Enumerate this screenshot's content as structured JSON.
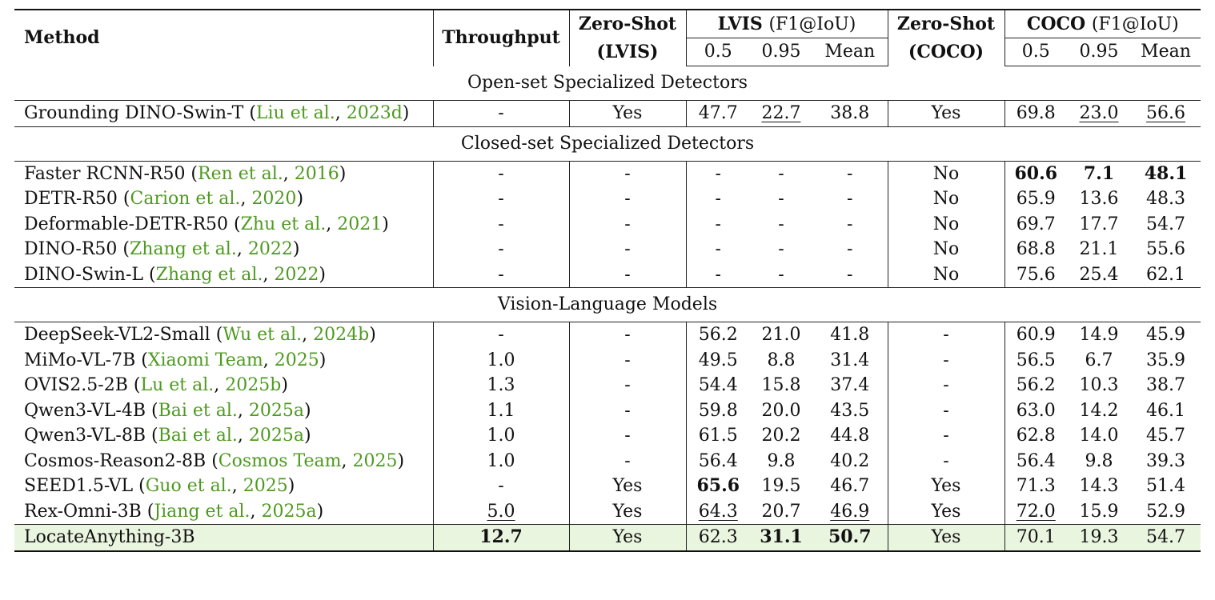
{
  "headers": {
    "method": "Method",
    "throughput": "Throughput",
    "zero_shot": "Zero-Shot",
    "lvis_paren": "(LVIS)",
    "coco_paren": "(COCO)",
    "lvis_group": "LVIS",
    "coco_group": "COCO",
    "metric": "(F1@IoU)",
    "col_05": "0.5",
    "col_095": "0.95",
    "col_mean": "Mean"
  },
  "sections": [
    {
      "title": "Open-set Specialized Detectors",
      "rows": [
        {
          "name": "Grounding DINO-Swin-T",
          "cite_author": "Liu et al.",
          "cite_year": "2023d",
          "throughput": "-",
          "zs_lvis": "Yes",
          "lvis_05": "47.7",
          "lvis_095": "22.7",
          "lvis_mean": "38.8",
          "zs_coco": "Yes",
          "coco_05": "69.8",
          "coco_095": "23.0",
          "coco_mean": "56.6"
        }
      ]
    },
    {
      "title": "Closed-set Specialized Detectors",
      "rows": [
        {
          "name": "Faster RCNN-R50",
          "cite_author": "Ren et al.",
          "cite_year": "2016",
          "throughput": "-",
          "zs_lvis": "-",
          "lvis_05": "-",
          "lvis_095": "-",
          "lvis_mean": "-",
          "zs_coco": "No",
          "coco_05": "60.6",
          "coco_095": "7.1",
          "coco_mean": "48.1"
        },
        {
          "name": "DETR-R50",
          "cite_author": "Carion et al.",
          "cite_year": "2020",
          "throughput": "-",
          "zs_lvis": "-",
          "lvis_05": "-",
          "lvis_095": "-",
          "lvis_mean": "-",
          "zs_coco": "No",
          "coco_05": "65.9",
          "coco_095": "13.6",
          "coco_mean": "48.3"
        },
        {
          "name": "Deformable-DETR-R50",
          "cite_author": "Zhu et al.",
          "cite_year": "2021",
          "throughput": "-",
          "zs_lvis": "-",
          "lvis_05": "-",
          "lvis_095": "-",
          "lvis_mean": "-",
          "zs_coco": "No",
          "coco_05": "69.7",
          "coco_095": "17.7",
          "coco_mean": "54.7"
        },
        {
          "name": "DINO-R50",
          "cite_author": "Zhang et al.",
          "cite_year": "2022",
          "throughput": "-",
          "zs_lvis": "-",
          "lvis_05": "-",
          "lvis_095": "-",
          "lvis_mean": "-",
          "zs_coco": "No",
          "coco_05": "68.8",
          "coco_095": "21.1",
          "coco_mean": "55.6"
        },
        {
          "name": "DINO-Swin-L",
          "cite_author": "Zhang et al.",
          "cite_year": "2022",
          "throughput": "-",
          "zs_lvis": "-",
          "lvis_05": "-",
          "lvis_095": "-",
          "lvis_mean": "-",
          "zs_coco": "No",
          "coco_05": "75.6",
          "coco_095": "25.4",
          "coco_mean": "62.1"
        }
      ]
    },
    {
      "title": "Vision-Language Models",
      "rows": [
        {
          "name": "DeepSeek-VL2-Small",
          "cite_author": "Wu et al.",
          "cite_year": "2024b",
          "throughput": "-",
          "zs_lvis": "-",
          "lvis_05": "56.2",
          "lvis_095": "21.0",
          "lvis_mean": "41.8",
          "zs_coco": "-",
          "coco_05": "60.9",
          "coco_095": "14.9",
          "coco_mean": "45.9"
        },
        {
          "name": "MiMo-VL-7B",
          "cite_author": "Xiaomi Team",
          "cite_year": "2025",
          "throughput": "1.0",
          "zs_lvis": "-",
          "lvis_05": "49.5",
          "lvis_095": "8.8",
          "lvis_mean": "31.4",
          "zs_coco": "-",
          "coco_05": "56.5",
          "coco_095": "6.7",
          "coco_mean": "35.9"
        },
        {
          "name": "OVIS2.5-2B",
          "cite_author": "Lu et al.",
          "cite_year": "2025b",
          "throughput": "1.3",
          "zs_lvis": "-",
          "lvis_05": "54.4",
          "lvis_095": "15.8",
          "lvis_mean": "37.4",
          "zs_coco": "-",
          "coco_05": "56.2",
          "coco_095": "10.3",
          "coco_mean": "38.7"
        },
        {
          "name": "Qwen3-VL-4B",
          "cite_author": "Bai et al.",
          "cite_year": "2025a",
          "throughput": "1.1",
          "zs_lvis": "-",
          "lvis_05": "59.8",
          "lvis_095": "20.0",
          "lvis_mean": "43.5",
          "zs_coco": "-",
          "coco_05": "63.0",
          "coco_095": "14.2",
          "coco_mean": "46.1"
        },
        {
          "name": "Qwen3-VL-8B",
          "cite_author": "Bai et al.",
          "cite_year": "2025a",
          "throughput": "1.0",
          "zs_lvis": "-",
          "lvis_05": "61.5",
          "lvis_095": "20.2",
          "lvis_mean": "44.8",
          "zs_coco": "-",
          "coco_05": "62.8",
          "coco_095": "14.0",
          "coco_mean": "45.7"
        },
        {
          "name": "Cosmos-Reason2-8B",
          "cite_author": "Cosmos Team",
          "cite_year": "2025",
          "throughput": "1.0",
          "zs_lvis": "-",
          "lvis_05": "56.4",
          "lvis_095": "9.8",
          "lvis_mean": "40.2",
          "zs_coco": "-",
          "coco_05": "56.4",
          "coco_095": "9.8",
          "coco_mean": "39.3"
        },
        {
          "name": "SEED1.5-VL",
          "cite_author": "Guo et al.",
          "cite_year": "2025",
          "throughput": "-",
          "zs_lvis": "Yes",
          "lvis_05": "65.6",
          "lvis_095": "19.5",
          "lvis_mean": "46.7",
          "zs_coco": "Yes",
          "coco_05": "71.3",
          "coco_095": "14.3",
          "coco_mean": "51.4"
        },
        {
          "name": "Rex-Omni-3B",
          "cite_author": "Jiang et al.",
          "cite_year": "2025a",
          "throughput": "5.0",
          "zs_lvis": "Yes",
          "lvis_05": "64.3",
          "lvis_095": "20.7",
          "lvis_mean": "46.9",
          "zs_coco": "Yes",
          "coco_05": "72.0",
          "coco_095": "15.9",
          "coco_mean": "52.9"
        }
      ]
    }
  ],
  "final_row": {
    "name": "LocateAnything-3B",
    "throughput": "12.7",
    "zs_lvis": "Yes",
    "lvis_05": "62.3",
    "lvis_095": "31.1",
    "lvis_mean": "50.7",
    "zs_coco": "Yes",
    "coco_05": "70.1",
    "coco_095": "19.3",
    "coco_mean": "54.7"
  },
  "styling": {
    "bold": [
      "2.0.coco_05",
      "2.0.coco_095",
      "2.0.coco_mean",
      "3.6.lvis_05",
      "final.throughput",
      "final.lvis_095",
      "final.lvis_mean"
    ],
    "underline": [
      "1.0.lvis_095",
      "1.0.coco_095",
      "1.0.coco_mean",
      "3.7.throughput",
      "3.7.lvis_05",
      "3.7.lvis_mean",
      "3.7.coco_05"
    ],
    "cite_color": "#4e9a20",
    "highlight_color": "#eaf5e0"
  }
}
